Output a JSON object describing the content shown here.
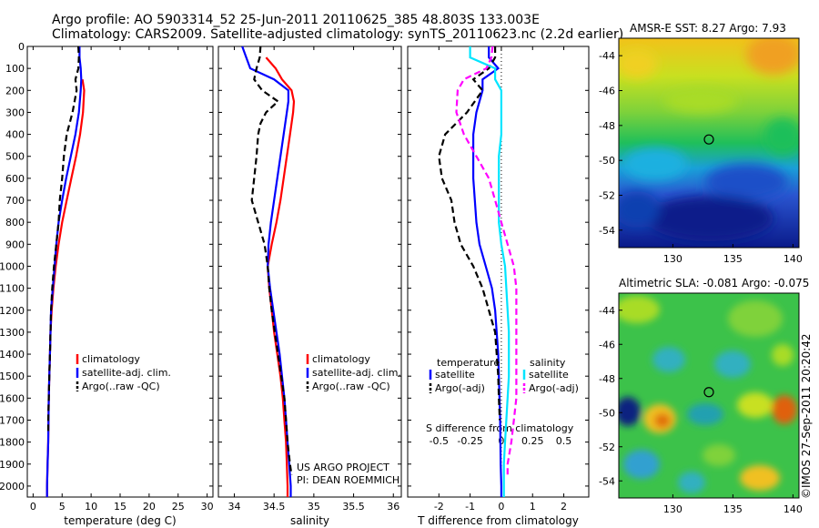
{
  "header": {
    "line1": "Argo profile: AO 5903314_52 25-Jun-2011 20110625_385 48.803S 133.003E",
    "line2": "Climatology: CARS2009. Satellite-adjusted climatology: synTS_20110623.nc (2.2d earlier)"
  },
  "colors": {
    "climatology": "#ff0000",
    "satellite": "#0000ff",
    "argo": "#000000",
    "sal_satellite": "#00e5ff",
    "sal_argo": "#ff00ff",
    "dotted": "#000000"
  },
  "chart_data": [
    {
      "type": "line",
      "id": "temperature",
      "xlabel": "temperature (deg C)",
      "xlim": [
        -1,
        31
      ],
      "ylim": [
        2050,
        0
      ],
      "xticks": [
        0,
        5,
        10,
        15,
        20,
        25,
        30
      ],
      "xticklabels": [
        "0",
        "5",
        "10",
        "15",
        "20",
        "25",
        "30"
      ],
      "yticks": [
        0,
        100,
        200,
        300,
        400,
        500,
        600,
        700,
        800,
        900,
        1000,
        1100,
        1200,
        1300,
        1400,
        1500,
        1600,
        1700,
        1800,
        1900,
        2000
      ],
      "legend": [
        "climatology",
        "satellite-adj. clim.",
        "Argo(..raw -QC)"
      ],
      "series": [
        {
          "name": "climatology",
          "style": "solid",
          "depth": [
            150,
            200,
            300,
            400,
            500,
            600,
            700,
            800,
            900,
            1000,
            1100,
            1200,
            1300,
            1400,
            1500,
            1600,
            1700,
            1800,
            1900,
            2000,
            2050
          ],
          "values": [
            8.5,
            8.8,
            8.6,
            8.1,
            7.4,
            6.6,
            5.8,
            5.0,
            4.4,
            3.9,
            3.5,
            3.2,
            3.0,
            2.9,
            2.8,
            2.7,
            2.65,
            2.6,
            2.5,
            2.4,
            2.4
          ]
        },
        {
          "name": "satellite-adj. clim.",
          "style": "solid",
          "depth": [
            0,
            50,
            100,
            150,
            200,
            300,
            400,
            500,
            600,
            700,
            800,
            900,
            1000,
            1100,
            1200,
            1300,
            1400,
            1500,
            1600,
            1700,
            1800,
            1900,
            2000,
            2050
          ],
          "values": [
            8.0,
            8.0,
            8.2,
            8.3,
            8.2,
            7.9,
            7.3,
            6.5,
            5.7,
            5.0,
            4.4,
            4.0,
            3.7,
            3.4,
            3.1,
            3.0,
            2.9,
            2.8,
            2.7,
            2.65,
            2.6,
            2.5,
            2.4,
            2.4
          ]
        },
        {
          "name": "Argo(..raw -QC)",
          "style": "dashed",
          "depth": [
            0,
            50,
            100,
            150,
            200,
            300,
            400,
            500,
            600,
            700,
            800,
            900,
            1000,
            1100,
            1200,
            1300,
            1400,
            1500,
            1600,
            1700,
            1750
          ],
          "values": [
            7.8,
            7.9,
            7.8,
            7.3,
            7.5,
            6.8,
            5.8,
            5.3,
            5.0,
            4.6,
            4.4,
            4.0,
            3.6,
            3.3,
            3.1,
            3.0,
            2.9,
            2.8,
            2.7,
            2.6,
            2.6
          ]
        }
      ]
    },
    {
      "type": "line",
      "id": "salinity",
      "xlabel": "salinity",
      "xlim": [
        33.8,
        36.1
      ],
      "ylim": [
        2050,
        0
      ],
      "xticks": [
        34,
        34.5,
        35,
        35.5,
        36
      ],
      "xticklabels": [
        "34",
        "34.5",
        "35",
        "35.5",
        "36"
      ],
      "legend": [
        "climatology",
        "satellite-adj. clim.",
        "Argo(..raw -QC)"
      ],
      "annotation": [
        "US ARGO PROJECT",
        "PI: DEAN ROEMMICH"
      ],
      "series": [
        {
          "name": "climatology",
          "style": "solid",
          "depth": [
            50,
            100,
            150,
            200,
            250,
            300,
            400,
            500,
            600,
            700,
            800,
            900,
            1000,
            1100,
            1200,
            1300,
            1400,
            1500,
            1600,
            1700,
            1800,
            1900,
            2000,
            2050
          ],
          "values": [
            34.4,
            34.52,
            34.6,
            34.72,
            34.75,
            34.74,
            34.7,
            34.66,
            34.62,
            34.58,
            34.53,
            34.47,
            34.42,
            34.44,
            34.47,
            34.5,
            34.54,
            34.58,
            34.61,
            34.63,
            34.65,
            34.66,
            34.67,
            34.67
          ]
        },
        {
          "name": "satellite-adj. clim.",
          "style": "solid",
          "depth": [
            0,
            50,
            100,
            150,
            200,
            250,
            300,
            400,
            500,
            600,
            700,
            800,
            900,
            1000,
            1100,
            1200,
            1300,
            1400,
            1500,
            1600,
            1700,
            1800,
            1900,
            2000,
            2050
          ],
          "values": [
            34.1,
            34.15,
            34.2,
            34.5,
            34.68,
            34.68,
            34.66,
            34.62,
            34.58,
            34.54,
            34.5,
            34.46,
            34.43,
            34.42,
            34.45,
            34.49,
            34.53,
            34.57,
            34.6,
            34.63,
            34.65,
            34.67,
            34.69,
            34.71,
            34.71
          ]
        },
        {
          "name": "Argo(..raw -QC)",
          "style": "dashed",
          "depth": [
            0,
            50,
            100,
            150,
            200,
            250,
            300,
            350,
            400,
            500,
            600,
            700,
            800,
            900,
            1000,
            1100,
            1200,
            1300,
            1400,
            1500,
            1600,
            1700,
            1800,
            1900,
            1950
          ],
          "values": [
            34.33,
            34.32,
            34.28,
            34.25,
            34.35,
            34.55,
            34.4,
            34.33,
            34.3,
            34.28,
            34.25,
            34.22,
            34.3,
            34.38,
            34.42,
            34.44,
            34.47,
            34.51,
            34.55,
            34.59,
            34.63,
            34.65,
            34.67,
            34.7,
            34.72
          ]
        }
      ]
    },
    {
      "type": "line",
      "id": "difference",
      "xlabel": "T difference from climatology",
      "xlabel2": "S difference from climatology",
      "xlim": [
        -3,
        2.8
      ],
      "ylim": [
        2050,
        0
      ],
      "xticks": [
        -2,
        -1,
        0,
        1,
        2
      ],
      "xticklabels": [
        "-2",
        "-1",
        "0",
        "1",
        "2"
      ],
      "sticks": [
        -0.5,
        -0.25,
        0,
        0.25,
        0.5
      ],
      "sticklabels": [
        "-0.5",
        "-0.25",
        "0",
        "0.25",
        "0.5"
      ],
      "legend_left_title": "temperature",
      "legend_right_title": "salinity",
      "legend_left": [
        "satellite",
        "Argo(-adj)"
      ],
      "legend_right": [
        "satellite",
        "Argo(-adj)"
      ],
      "series": [
        {
          "name": "T satellite",
          "style": "solid",
          "depth": [
            0,
            50,
            100,
            150,
            200,
            300,
            400,
            500,
            600,
            700,
            800,
            900,
            1000,
            1100,
            1200,
            1300,
            1400,
            1500,
            1600,
            1700,
            1800,
            1900,
            2000,
            2050
          ],
          "values": [
            -0.4,
            -0.4,
            -0.1,
            -0.6,
            -0.6,
            -0.8,
            -0.9,
            -0.9,
            -0.9,
            -0.85,
            -0.8,
            -0.7,
            -0.5,
            -0.3,
            -0.2,
            -0.15,
            -0.1,
            -0.08,
            -0.06,
            -0.04,
            -0.03,
            -0.02,
            0,
            0
          ]
        },
        {
          "name": "T Argo(-adj)",
          "style": "dashed",
          "depth": [
            0,
            50,
            100,
            150,
            200,
            300,
            400,
            500,
            600,
            700,
            800,
            900,
            1000,
            1100,
            1200,
            1300,
            1400,
            1500,
            1600,
            1700
          ],
          "values": [
            -0.2,
            -0.2,
            -0.4,
            -0.9,
            -0.6,
            -1.1,
            -1.8,
            -2.0,
            -1.9,
            -1.6,
            -1.5,
            -1.3,
            -0.9,
            -0.6,
            -0.4,
            -0.2,
            -0.15,
            -0.1,
            -0.08,
            -0.05
          ]
        },
        {
          "name": "S satellite",
          "style": "solid",
          "depth": [
            0,
            50,
            100,
            150,
            200,
            300,
            400,
            500,
            600,
            700,
            800,
            900,
            1000,
            1100,
            1200,
            1300,
            1400,
            1500,
            1600,
            1700,
            1800,
            1900,
            2000,
            2050
          ],
          "values": [
            -0.25,
            -0.25,
            -0.05,
            -0.05,
            0,
            0,
            0,
            -0.02,
            -0.02,
            -0.02,
            -0.02,
            0,
            0.03,
            0.04,
            0.05,
            0.06,
            0.06,
            0.06,
            0.05,
            0.04,
            0.03,
            0.02,
            0.02,
            0.02
          ]
        },
        {
          "name": "S Argo(-adj)",
          "style": "dashed",
          "depth": [
            0,
            50,
            100,
            150,
            200,
            300,
            400,
            500,
            600,
            700,
            800,
            900,
            1000,
            1100,
            1200,
            1300,
            1400,
            1500,
            1600,
            1700,
            1800,
            1900,
            1950
          ],
          "values": [
            -0.07,
            -0.08,
            -0.12,
            -0.3,
            -0.35,
            -0.36,
            -0.3,
            -0.2,
            -0.1,
            -0.05,
            0,
            0.05,
            0.1,
            0.12,
            0.12,
            0.12,
            0.12,
            0.12,
            0.12,
            0.1,
            0.08,
            0.05,
            0.05
          ]
        }
      ]
    },
    {
      "type": "heatmap",
      "id": "sst_map",
      "title": "AMSR-E SST: 8.27  Argo: 7.93",
      "xticks": [
        130,
        135,
        140
      ],
      "yticks": [
        -44,
        -46,
        -48,
        -50,
        -52,
        -54
      ],
      "xlim": [
        125.5,
        140.5
      ],
      "ylim": [
        -55,
        -43
      ],
      "marker": [
        133.0,
        -48.8
      ]
    },
    {
      "type": "heatmap",
      "id": "sla_map",
      "title": "Altimetric SLA: -0.081  Argo: -0.075",
      "xticks": [
        130,
        135,
        140
      ],
      "yticks": [
        -44,
        -46,
        -48,
        -50,
        -52,
        -54
      ],
      "xlim": [
        125.5,
        140.5
      ],
      "ylim": [
        -55,
        -43
      ],
      "marker": [
        133.0,
        -48.8
      ]
    }
  ],
  "footer": {
    "stamp": "©IMOS 27-Sep-2011 20:20:42"
  }
}
